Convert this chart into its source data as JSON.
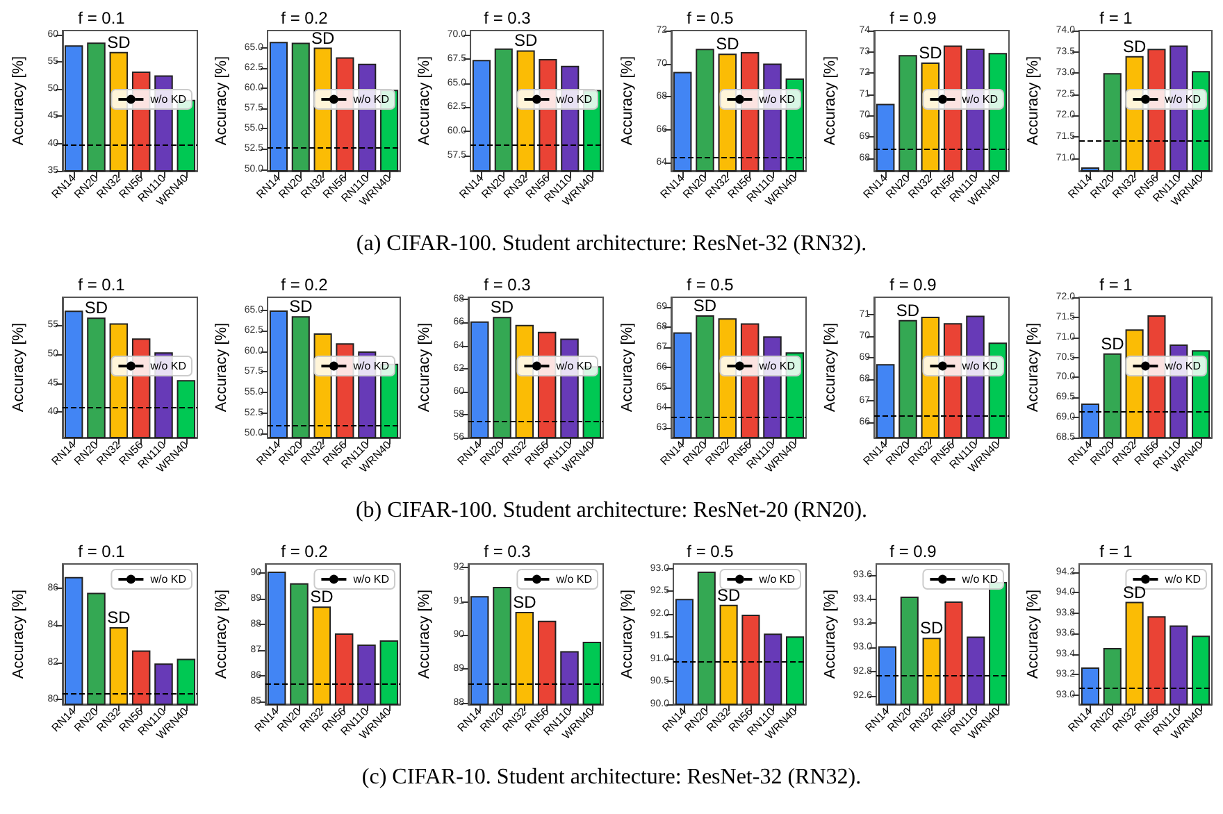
{
  "chart_data": [
    {
      "type": "bar",
      "title": "f = 0.1",
      "ylabel": "Accuracy [%]",
      "categories": [
        "RN14",
        "RN20",
        "RN32",
        "RN56",
        "RN110",
        "WRN40"
      ],
      "colors": [
        "#4285f4",
        "#34a853",
        "#fbbc05",
        "#ea4335",
        "#673ab7",
        "#00c853"
      ],
      "values": [
        58.0,
        58.5,
        56.8,
        53.2,
        52.5,
        48
      ],
      "ylim": [
        35,
        60.7
      ],
      "yticks": [
        35,
        40,
        45,
        50,
        55,
        60
      ],
      "ref_lines": [
        {
          "axis": "y",
          "value": 39.8,
          "label": "w/o KD",
          "line_style": "dashed",
          "color": "#000000"
        }
      ],
      "legend": "right",
      "annotations": [
        {
          "text": "SD",
          "x": "RN32",
          "y": 56.8
        },
        "(a) CIFAR-100. Student architecture: ResNet-32 (RN32)."
      ]
    },
    {
      "type": "bar",
      "title": "f = 0.2",
      "ylabel": "Accuracy [%]",
      "categories": [
        "RN14",
        "RN20",
        "RN32",
        "RN56",
        "RN110",
        "WRN40"
      ],
      "colors": [
        "#4285f4",
        "#34a853",
        "#fbbc05",
        "#ea4335",
        "#673ab7",
        "#00c853"
      ],
      "values": [
        65.7,
        65.6,
        65.0,
        63.8,
        63.0,
        59.8
      ],
      "ylim": [
        49.8,
        67.1
      ],
      "yticks": [
        {
          "value": 50,
          "label": "50.0"
        },
        52.5,
        {
          "value": 55,
          "label": "55.0"
        },
        57.5,
        {
          "value": 60,
          "label": "60.0"
        },
        62.5,
        {
          "value": 65,
          "label": "65.0"
        }
      ],
      "ref_lines": [
        {
          "axis": "y",
          "value": 52.7,
          "label": "w/o KD",
          "line_style": "dashed",
          "color": "#000000"
        }
      ],
      "legend": "right",
      "annotations": [
        {
          "text": "SD",
          "x": "RN32",
          "y": 65.0
        }
      ]
    },
    {
      "type": "bar",
      "title": "f = 0.3",
      "ylabel": "Accuracy [%]",
      "categories": [
        "RN14",
        "RN20",
        "RN32",
        "RN56",
        "RN110",
        "WRN40"
      ],
      "colors": [
        "#4285f4",
        "#34a853",
        "#fbbc05",
        "#ea4335",
        "#673ab7",
        "#00c853"
      ],
      "values": [
        67.4,
        68.6,
        68.4,
        67.5,
        66.8,
        64.3
      ],
      "ylim": [
        55.9,
        70.45
      ],
      "yticks": [
        57.5,
        {
          "value": 60,
          "label": "60.0"
        },
        62.5,
        {
          "value": 65,
          "label": "65.0"
        },
        67.5,
        {
          "value": 70,
          "label": "70.0"
        }
      ],
      "ref_lines": [
        {
          "axis": "y",
          "value": 58.6,
          "label": "w/o KD",
          "line_style": "dashed",
          "color": "#000000"
        }
      ],
      "legend": "right",
      "annotations": [
        {
          "text": "SD",
          "x": "RN32",
          "y": 68.4
        }
      ]
    },
    {
      "type": "bar",
      "title": "f = 0.5",
      "ylabel": "Accuracy [%]",
      "categories": [
        "RN14",
        "RN20",
        "RN32",
        "RN56",
        "RN110",
        "WRN40"
      ],
      "colors": [
        "#4285f4",
        "#34a853",
        "#fbbc05",
        "#ea4335",
        "#673ab7",
        "#00c853"
      ],
      "values": [
        69.5,
        70.9,
        70.6,
        70.7,
        70.0,
        69.1
      ],
      "ylim": [
        63.5,
        72
      ],
      "yticks": [
        64,
        66,
        68,
        70,
        72
      ],
      "ref_lines": [
        {
          "axis": "y",
          "value": 64.3,
          "label": "w/o KD",
          "line_style": "dashed",
          "color": "#000000"
        }
      ],
      "legend": "right",
      "annotations": [
        {
          "text": "SD",
          "x": "RN32",
          "y": 70.6
        }
      ]
    },
    {
      "type": "bar",
      "title": "f = 0.9",
      "ylabel": "Accuracy [%]",
      "categories": [
        "RN14",
        "RN20",
        "RN32",
        "RN56",
        "RN110",
        "WRN40"
      ],
      "colors": [
        "#4285f4",
        "#34a853",
        "#fbbc05",
        "#ea4335",
        "#673ab7",
        "#00c853"
      ],
      "values": [
        70.55,
        72.85,
        72.5,
        73.3,
        73.15,
        72.95
      ],
      "ylim": [
        67.4,
        74
      ],
      "yticks": [
        68,
        69,
        70,
        71,
        72,
        73,
        74
      ],
      "ref_lines": [
        {
          "axis": "y",
          "value": 68.4,
          "label": "w/o KD",
          "line_style": "dashed",
          "color": "#000000"
        }
      ],
      "legend": "right",
      "annotations": [
        {
          "text": "SD",
          "x": "RN32",
          "y": 72.5
        }
      ]
    },
    {
      "type": "bar",
      "title": "f = 1",
      "ylabel": "Accuracy [%]",
      "categories": [
        "RN14",
        "RN20",
        "RN32",
        "RN56",
        "RN110",
        "WRN40"
      ],
      "colors": [
        "#4285f4",
        "#34a853",
        "#fbbc05",
        "#ea4335",
        "#673ab7",
        "#00c853"
      ],
      "values": [
        70.78,
        73.0,
        73.4,
        73.57,
        73.65,
        73.05
      ],
      "ylim": [
        70.7,
        74
      ],
      "yticks": [
        {
          "value": 71,
          "label": "71.0"
        },
        71.5,
        {
          "value": 72,
          "label": "72.0"
        },
        72.5,
        {
          "value": 73,
          "label": "73.0"
        },
        73.5,
        {
          "value": 74,
          "label": "74.0"
        }
      ],
      "ref_lines": [
        {
          "axis": "y",
          "value": 71.42,
          "label": "w/o KD",
          "line_style": "dashed",
          "color": "#000000"
        }
      ],
      "legend": "right",
      "annotations": [
        {
          "text": "SD",
          "x": "RN32",
          "y": 73.4
        }
      ]
    },
    {
      "type": "bar",
      "title": "f = 0.1",
      "ylabel": "Accuracy [%]",
      "categories": [
        "RN14",
        "RN20",
        "RN32",
        "RN56",
        "RN110",
        "WRN40"
      ],
      "colors": [
        "#4285f4",
        "#34a853",
        "#fbbc05",
        "#ea4335",
        "#673ab7",
        "#00c853"
      ],
      "values": [
        57.5,
        56.3,
        55.3,
        52.7,
        50.3,
        45.5
      ],
      "ylim": [
        35.6,
        59.8
      ],
      "yticks": [
        40,
        45,
        50,
        55
      ],
      "ref_lines": [
        {
          "axis": "y",
          "value": 40.9,
          "label": "w/o KD",
          "line_style": "dashed",
          "color": "#000000"
        }
      ],
      "legend": "right",
      "annotations": [
        {
          "text": "SD",
          "x": "RN20",
          "y": 56.3
        },
        "(b) CIFAR-100. Student architecture: ResNet-20 (RN20)."
      ]
    },
    {
      "type": "bar",
      "title": "f = 0.2",
      "ylabel": "Accuracy [%]",
      "categories": [
        "RN14",
        "RN20",
        "RN32",
        "RN56",
        "RN110",
        "WRN40"
      ],
      "colors": [
        "#4285f4",
        "#34a853",
        "#fbbc05",
        "#ea4335",
        "#673ab7",
        "#00c853"
      ],
      "values": [
        65.0,
        64.3,
        62.2,
        61.0,
        60.0,
        58.5
      ],
      "ylim": [
        49.5,
        66.6
      ],
      "yticks": [
        {
          "value": 50,
          "label": "50.0"
        },
        52.5,
        {
          "value": 55,
          "label": "55.0"
        },
        57.5,
        {
          "value": 60,
          "label": "60.0"
        },
        62.5,
        {
          "value": 65,
          "label": "65.0"
        }
      ],
      "ref_lines": [
        {
          "axis": "y",
          "value": 51.0,
          "label": "w/o KD",
          "line_style": "dashed",
          "color": "#000000"
        }
      ],
      "legend": "right",
      "annotations": [
        {
          "text": "SD",
          "x": "RN20",
          "y": 64.3
        }
      ]
    },
    {
      "type": "bar",
      "title": "f = 0.3",
      "ylabel": "Accuracy [%]",
      "categories": [
        "RN14",
        "RN20",
        "RN32",
        "RN56",
        "RN110",
        "WRN40"
      ],
      "colors": [
        "#4285f4",
        "#34a853",
        "#fbbc05",
        "#ea4335",
        "#673ab7",
        "#00c853"
      ],
      "values": [
        66.1,
        66.5,
        65.8,
        65.2,
        64.6,
        62.2
      ],
      "ylim": [
        56,
        68.2
      ],
      "yticks": [
        56,
        58,
        60,
        62,
        64,
        66,
        68
      ],
      "ref_lines": [
        {
          "axis": "y",
          "value": 57.4,
          "label": "w/o KD",
          "line_style": "dashed",
          "color": "#000000"
        }
      ],
      "legend": "right",
      "annotations": [
        {
          "text": "SD",
          "x": "RN20",
          "y": 66.5
        }
      ]
    },
    {
      "type": "bar",
      "title": "f = 0.5",
      "ylabel": "Accuracy [%]",
      "categories": [
        "RN14",
        "RN20",
        "RN32",
        "RN56",
        "RN110",
        "WRN40"
      ],
      "colors": [
        "#4285f4",
        "#34a853",
        "#fbbc05",
        "#ea4335",
        "#673ab7",
        "#00c853"
      ],
      "values": [
        67.75,
        68.6,
        68.45,
        68.2,
        67.55,
        66.75
      ],
      "ylim": [
        62.5,
        69.5
      ],
      "yticks": [
        63,
        64,
        65,
        66,
        67,
        68,
        69
      ],
      "ref_lines": [
        {
          "axis": "y",
          "value": 63.5,
          "label": "w/o KD",
          "line_style": "dashed",
          "color": "#000000"
        }
      ],
      "legend": "right",
      "annotations": [
        {
          "text": "SD",
          "x": "RN20",
          "y": 68.6
        }
      ]
    },
    {
      "type": "bar",
      "title": "f = 0.9",
      "ylabel": "Accuracy [%]",
      "categories": [
        "RN14",
        "RN20",
        "RN32",
        "RN56",
        "RN110",
        "WRN40"
      ],
      "colors": [
        "#4285f4",
        "#34a853",
        "#fbbc05",
        "#ea4335",
        "#673ab7",
        "#00c853"
      ],
      "values": [
        68.7,
        70.75,
        70.9,
        70.6,
        70.95,
        69.7
      ],
      "ylim": [
        65.3,
        71.8
      ],
      "yticks": [
        66,
        67,
        68,
        69,
        70,
        71
      ],
      "ref_lines": [
        {
          "axis": "y",
          "value": 66.3,
          "label": "w/o KD",
          "line_style": "dashed",
          "color": "#000000"
        }
      ],
      "legend": "right",
      "annotations": [
        {
          "text": "SD",
          "x": "RN20",
          "y": 70.75
        }
      ]
    },
    {
      "type": "bar",
      "title": "f = 1",
      "ylabel": "Accuracy [%]",
      "categories": [
        "RN14",
        "RN20",
        "RN32",
        "RN56",
        "RN110",
        "WRN40"
      ],
      "colors": [
        "#4285f4",
        "#34a853",
        "#fbbc05",
        "#ea4335",
        "#673ab7",
        "#00c853"
      ],
      "values": [
        69.35,
        70.6,
        71.2,
        71.55,
        70.82,
        70.68
      ],
      "ylim": [
        68.5,
        72
      ],
      "yticks": [
        68.5,
        {
          "value": 69,
          "label": "69.0"
        },
        69.5,
        {
          "value": 70,
          "label": "70.0"
        },
        70.5,
        {
          "value": 71,
          "label": "71.0"
        },
        71.5,
        {
          "value": 72,
          "label": "72.0"
        }
      ],
      "ref_lines": [
        {
          "axis": "y",
          "value": 69.15,
          "label": "w/o KD",
          "line_style": "dashed",
          "color": "#000000"
        }
      ],
      "legend": "right",
      "annotations": [
        {
          "text": "SD",
          "x": "RN20",
          "y": 70.6
        }
      ]
    },
    {
      "type": "bar",
      "title": "f = 0.1",
      "ylabel": "Accuracy [%]",
      "categories": [
        "RN14",
        "RN20",
        "RN32",
        "RN56",
        "RN110",
        "WRN40"
      ],
      "colors": [
        "#4285f4",
        "#34a853",
        "#fbbc05",
        "#ea4335",
        "#673ab7",
        "#00c853"
      ],
      "values": [
        86.6,
        85.75,
        83.9,
        82.65,
        81.95,
        82.2
      ],
      "ylim": [
        79.75,
        87.3
      ],
      "yticks": [
        80,
        82,
        84,
        86
      ],
      "ref_lines": [
        {
          "axis": "y",
          "value": 80.3,
          "label": "w/o KD",
          "line_style": "dashed",
          "color": "#000000"
        }
      ],
      "legend": "top right",
      "annotations": [
        {
          "text": "SD",
          "x": "RN32",
          "y": 83.9
        },
        "(c) CIFAR-10. Student architecture: ResNet-32 (RN32)."
      ]
    },
    {
      "type": "bar",
      "title": "f = 0.2",
      "ylabel": "Accuracy [%]",
      "categories": [
        "RN14",
        "RN20",
        "RN32",
        "RN56",
        "RN110",
        "WRN40"
      ],
      "colors": [
        "#4285f4",
        "#34a853",
        "#fbbc05",
        "#ea4335",
        "#673ab7",
        "#00c853"
      ],
      "values": [
        90.05,
        89.6,
        88.7,
        87.65,
        87.22,
        87.38
      ],
      "ylim": [
        84.9,
        90.35
      ],
      "yticks": [
        85,
        86,
        87,
        88,
        89,
        90
      ],
      "ref_lines": [
        {
          "axis": "y",
          "value": 85.72,
          "label": "w/o KD",
          "line_style": "dashed",
          "color": "#000000"
        }
      ],
      "legend": "top right",
      "annotations": [
        {
          "text": "SD",
          "x": "RN32",
          "y": 88.7
        }
      ]
    },
    {
      "type": "bar",
      "title": "f = 0.3",
      "ylabel": "Accuracy [%]",
      "categories": [
        "RN14",
        "RN20",
        "RN32",
        "RN56",
        "RN110",
        "WRN40"
      ],
      "colors": [
        "#4285f4",
        "#34a853",
        "#fbbc05",
        "#ea4335",
        "#673ab7",
        "#00c853"
      ],
      "values": [
        91.15,
        91.42,
        90.68,
        90.42,
        89.52,
        89.8
      ],
      "ylim": [
        87.95,
        92.1
      ],
      "yticks": [
        88,
        89,
        90,
        91,
        92
      ],
      "ref_lines": [
        {
          "axis": "y",
          "value": 88.55,
          "label": "w/o KD",
          "line_style": "dashed",
          "color": "#000000"
        }
      ],
      "legend": "top right",
      "annotations": [
        {
          "text": "SD",
          "x": "RN32",
          "y": 90.68
        }
      ]
    },
    {
      "type": "bar",
      "title": "f = 0.5",
      "ylabel": "Accuracy [%]",
      "categories": [
        "RN14",
        "RN20",
        "RN32",
        "RN56",
        "RN110",
        "WRN40"
      ],
      "colors": [
        "#4285f4",
        "#34a853",
        "#fbbc05",
        "#ea4335",
        "#673ab7",
        "#00c853"
      ],
      "values": [
        92.33,
        92.93,
        92.2,
        91.98,
        91.56,
        91.5
      ],
      "ylim": [
        90,
        93.1
      ],
      "yticks": [
        {
          "value": 90,
          "label": "90.0"
        },
        90.5,
        {
          "value": 91,
          "label": "91.0"
        },
        91.5,
        {
          "value": 92,
          "label": "92.0"
        },
        92.5,
        {
          "value": 93,
          "label": "93.0"
        }
      ],
      "ref_lines": [
        {
          "axis": "y",
          "value": 90.95,
          "label": "w/o KD",
          "line_style": "dashed",
          "color": "#000000"
        }
      ],
      "legend": "top right",
      "annotations": [
        {
          "text": "SD",
          "x": "RN32",
          "y": 92.2
        }
      ]
    },
    {
      "type": "bar",
      "title": "f = 0.9",
      "ylabel": "Accuracy [%]",
      "categories": [
        "RN14",
        "RN20",
        "RN32",
        "RN56",
        "RN110",
        "WRN40"
      ],
      "colors": [
        "#4285f4",
        "#34a853",
        "#fbbc05",
        "#ea4335",
        "#673ab7",
        "#00c853"
      ],
      "values": [
        93.01,
        93.42,
        93.08,
        93.38,
        93.09,
        93.54
      ],
      "ylim": [
        92.53,
        93.69
      ],
      "yticks": [
        92.6,
        92.8,
        {
          "value": 93,
          "label": "93.0"
        },
        93.2,
        93.4,
        93.6
      ],
      "ref_lines": [
        {
          "axis": "y",
          "value": 92.77,
          "label": "w/o KD",
          "line_style": "dashed",
          "color": "#000000"
        }
      ],
      "legend": "top right",
      "annotations": [
        {
          "text": "SD",
          "x": "RN32",
          "y": 93.08
        }
      ]
    },
    {
      "type": "bar",
      "title": "f = 1",
      "ylabel": "Accuracy [%]",
      "categories": [
        "RN14",
        "RN20",
        "RN32",
        "RN56",
        "RN110",
        "WRN40"
      ],
      "colors": [
        "#4285f4",
        "#34a853",
        "#fbbc05",
        "#ea4335",
        "#673ab7",
        "#00c853"
      ],
      "values": [
        93.27,
        93.46,
        93.91,
        93.77,
        93.68,
        93.58
      ],
      "ylim": [
        92.91,
        94.28
      ],
      "yticks": [
        {
          "value": 93,
          "label": "93.0"
        },
        93.2,
        93.4,
        93.6,
        93.8,
        {
          "value": 94,
          "label": "94.0"
        },
        94.2
      ],
      "ref_lines": [
        {
          "axis": "y",
          "value": 93.07,
          "label": "w/o KD",
          "line_style": "dashed",
          "color": "#000000"
        }
      ],
      "legend": "top right",
      "annotations": [
        {
          "text": "SD",
          "x": "RN32",
          "y": 93.91
        }
      ]
    }
  ]
}
